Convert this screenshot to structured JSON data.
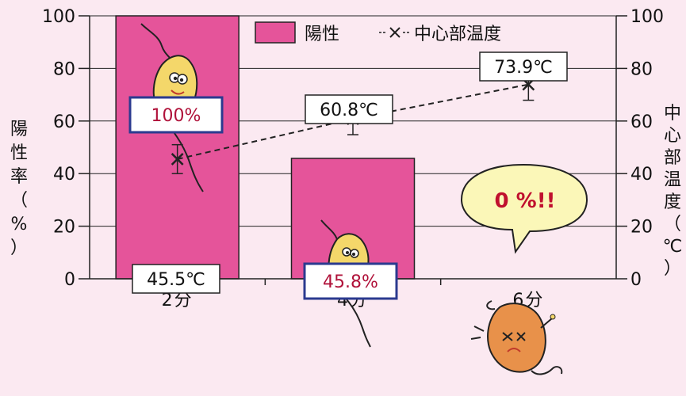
{
  "chart_data": {
    "type": "bar",
    "categories": [
      "2分",
      "4分",
      "6分"
    ],
    "series": [
      {
        "name": "陽性",
        "kind": "bar",
        "axis": "left",
        "values": [
          100,
          45.8,
          0
        ],
        "color": "#e5549a"
      },
      {
        "name": "中心部温度",
        "kind": "line",
        "axis": "right",
        "values": [
          45.5,
          60.8,
          73.9
        ],
        "error": [
          5.5,
          6.0,
          6.0
        ],
        "marker": "x",
        "line_style": "dashed",
        "color": "#222222"
      }
    ],
    "ylabel_left": [
      "陽",
      "性",
      "率",
      "（",
      "%",
      "）"
    ],
    "ylabel_right": [
      "中",
      "心",
      "部",
      "温",
      "度",
      "（",
      "℃",
      "）"
    ],
    "ylim_left": [
      0,
      100
    ],
    "ylim_right": [
      0,
      100
    ],
    "yticks": [
      0,
      20,
      40,
      60,
      80,
      100
    ],
    "grid": true,
    "legend_position": "top",
    "bar_labels": [
      "100%",
      "45.8%"
    ],
    "temp_labels": [
      "45.5℃",
      "60.8℃",
      "73.9℃"
    ],
    "bubble_text": "0 %!!"
  }
}
